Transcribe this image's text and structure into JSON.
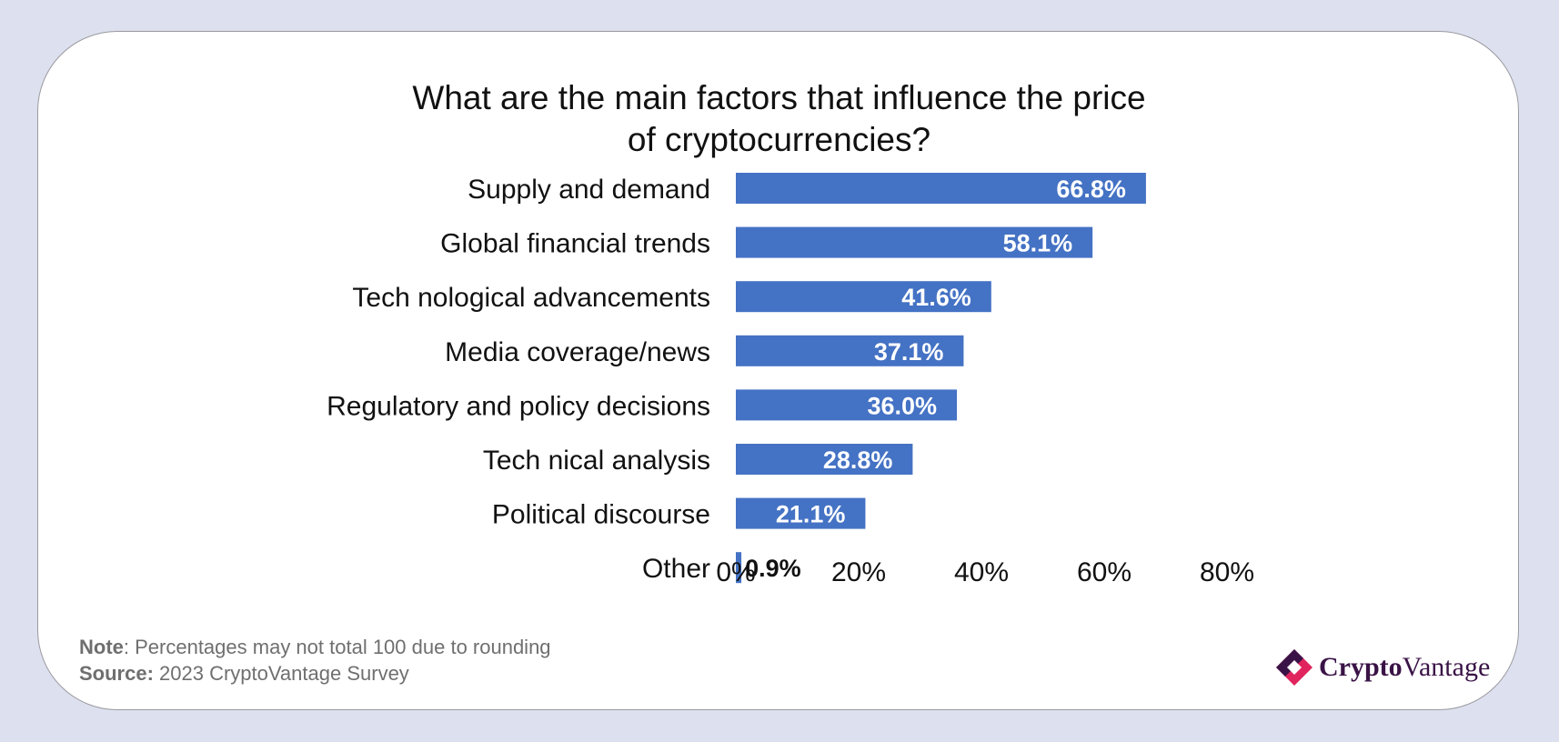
{
  "chart_data": {
    "type": "bar",
    "orientation": "horizontal",
    "title_lines": [
      "What are the main factors that influence the price",
      "of cryptocurrencies?"
    ],
    "categories": [
      "Supply and demand",
      "Global financial trends",
      "Tech nological advancements",
      "Media coverage/news",
      "Regulatory and policy decisions",
      "Tech nical analysis",
      "Political discourse",
      "Other"
    ],
    "values": [
      66.8,
      58.1,
      41.6,
      37.1,
      36.0,
      28.8,
      21.1,
      0.9
    ],
    "value_labels": [
      "66.8%",
      "58.1%",
      "41.6%",
      "37.1%",
      "36.0%",
      "28.8%",
      "21.1%",
      "0.9%"
    ],
    "xlim": [
      0,
      80
    ],
    "x_ticks": [
      0,
      20,
      40,
      60,
      80
    ],
    "x_tick_labels": [
      "0%",
      "20%",
      "40%",
      "60%",
      "80%"
    ],
    "xlabel": "",
    "ylabel": "",
    "grid": false,
    "bar_color": "#4472c4"
  },
  "footer": {
    "note_label": "Note",
    "note_text": ": Percentages may not total 100 due to rounding",
    "source_label": "Source:",
    "source_text": " 2023 CryptoVantage Survey"
  },
  "brand": {
    "name_part1": "Crypto",
    "name_part2": "Vantage",
    "logo_icon": "diamond-logo-icon",
    "colors": {
      "primary": "#e0245e",
      "secondary": "#3a1346"
    }
  }
}
